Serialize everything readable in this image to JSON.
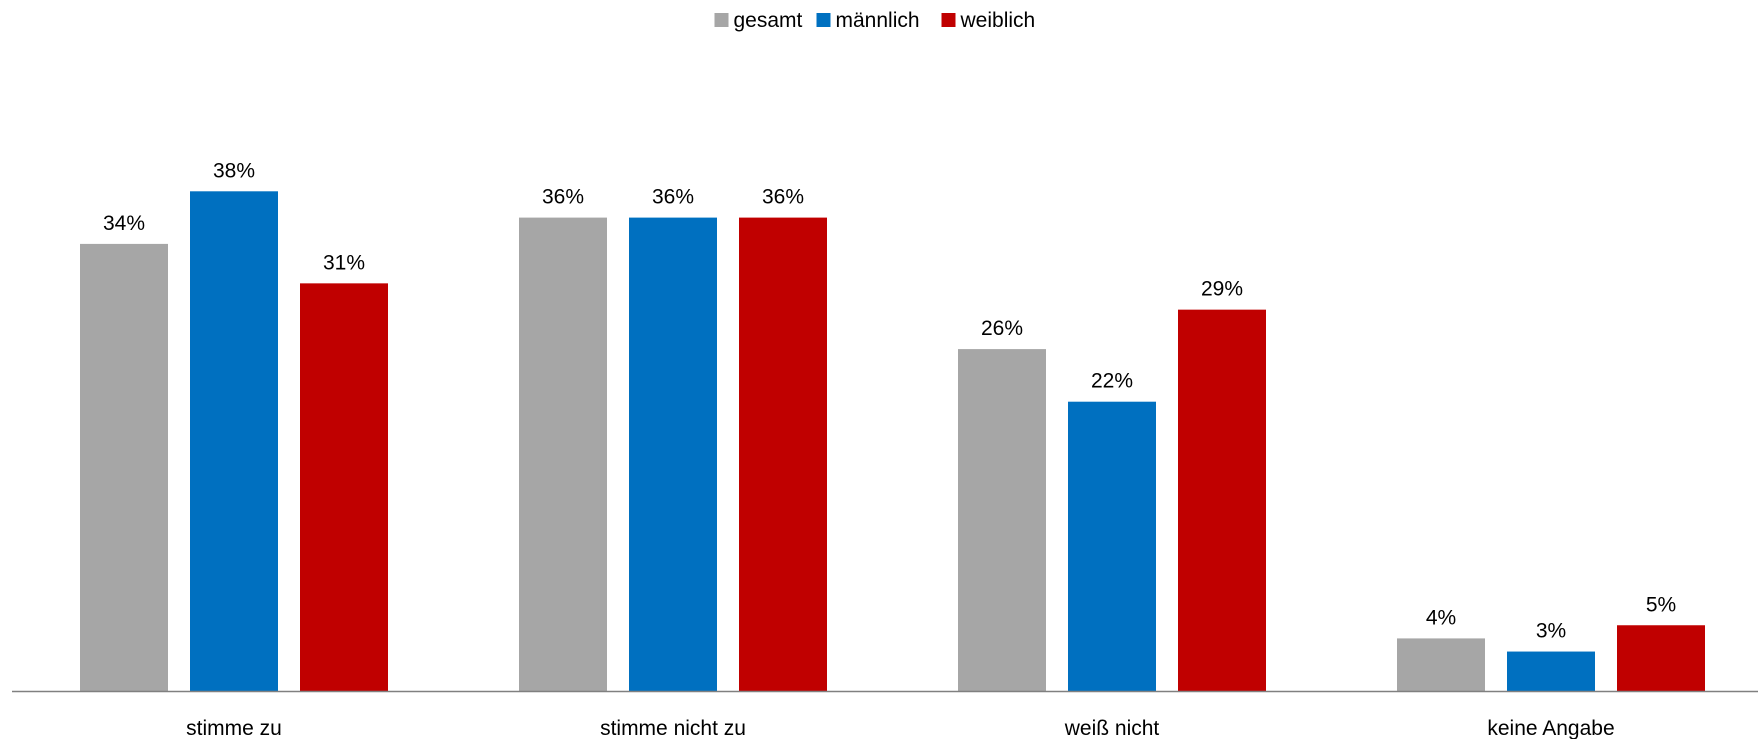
{
  "chart_data": {
    "type": "bar",
    "categories": [
      "stimme zu",
      "stimme nicht zu",
      "weiß nicht",
      "keine Angabe"
    ],
    "series": [
      {
        "name": "gesamt",
        "values": [
          34,
          36,
          26,
          4
        ],
        "labels": [
          "34%",
          "36%",
          "26%",
          "4%"
        ],
        "color": "#A6A6A6"
      },
      {
        "name": "männlich",
        "values": [
          38,
          36,
          22,
          3
        ],
        "labels": [
          "38%",
          "36%",
          "22%",
          "3%"
        ],
        "color": "#0070C0"
      },
      {
        "name": "weiblich",
        "values": [
          31,
          36,
          29,
          5
        ],
        "labels": [
          "31%",
          "36%",
          "29%",
          "5%"
        ],
        "color": "#C00000"
      }
    ],
    "value_format": "percent",
    "ylim": [
      0,
      40
    ],
    "legend_position": "top-center",
    "grid": false,
    "axis_color": "#808080"
  }
}
